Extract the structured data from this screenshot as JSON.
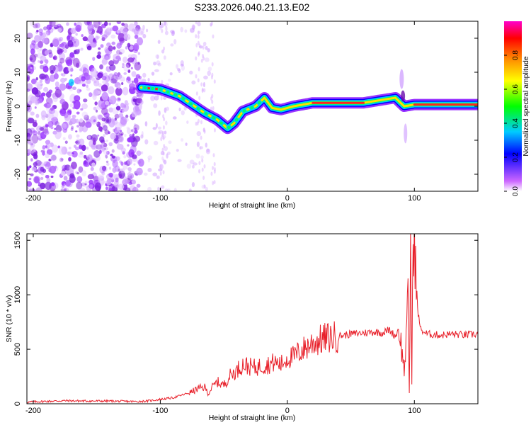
{
  "title": "S233.2026.040.21.13.E02",
  "chart_data": [
    {
      "type": "heatmap",
      "name": "spectrogram",
      "xlabel": "Height of straight line (km)",
      "ylabel": "Frequency (Hz)",
      "xlim": [
        -205,
        150
      ],
      "ylim": [
        -25,
        25
      ],
      "xticks": [
        -200,
        -100,
        0,
        100
      ],
      "yticks": [
        -20,
        -10,
        0,
        10,
        20
      ],
      "colorbar": {
        "label": "Normalized spectral amplitude",
        "range": [
          0,
          1
        ],
        "ticks": [
          0.0,
          0.2,
          0.4,
          0.6,
          0.8
        ],
        "colors": [
          "#ffffff",
          "#cc66ff",
          "#0000ff",
          "#00ccff",
          "#00ff00",
          "#ffff00",
          "#ff8800",
          "#ff0000",
          "#ff00cc"
        ]
      },
      "ridge": [
        {
          "x": -115,
          "y": 5.5
        },
        {
          "x": -100,
          "y": 5
        },
        {
          "x": -85,
          "y": 3
        },
        {
          "x": -75,
          "y": 0.5
        },
        {
          "x": -65,
          "y": -2
        },
        {
          "x": -55,
          "y": -4
        },
        {
          "x": -47,
          "y": -6.5
        },
        {
          "x": -42,
          "y": -5
        },
        {
          "x": -35,
          "y": -1.5
        },
        {
          "x": -25,
          "y": 0
        },
        {
          "x": -18,
          "y": 2.5
        },
        {
          "x": -12,
          "y": -0.5
        },
        {
          "x": -5,
          "y": -1
        },
        {
          "x": 5,
          "y": 0
        },
        {
          "x": 20,
          "y": 1
        },
        {
          "x": 60,
          "y": 1
        },
        {
          "x": 85,
          "y": 2.5
        },
        {
          "x": 92,
          "y": 0
        },
        {
          "x": 100,
          "y": 0.5
        },
        {
          "x": 150,
          "y": 0.5
        }
      ]
    },
    {
      "type": "line",
      "name": "snr",
      "xlabel": "Height of straight line (km)",
      "ylabel": "SNR (10 * v/v)",
      "xlim": [
        -205,
        150
      ],
      "ylim": [
        0,
        1560
      ],
      "xticks": [
        -200,
        -100,
        0,
        100
      ],
      "yticks": [
        0,
        500,
        1000,
        1500
      ],
      "color": "#e8202a",
      "x": [
        -205,
        -190,
        -175,
        -160,
        -140,
        -120,
        -110,
        -100,
        -90,
        -80,
        -75,
        -70,
        -65,
        -62,
        -60,
        -55,
        -50,
        -45,
        -40,
        -38,
        -35,
        -30,
        -25,
        -20,
        -15,
        -10,
        -5,
        0,
        5,
        10,
        15,
        20,
        30,
        40,
        50,
        60,
        70,
        75,
        80,
        85,
        88,
        90,
        92,
        94,
        95,
        96,
        97,
        98,
        99,
        100,
        102,
        105,
        110,
        120,
        130,
        140,
        150
      ],
      "y": [
        15,
        22,
        28,
        25,
        25,
        20,
        25,
        40,
        55,
        90,
        110,
        140,
        150,
        90,
        140,
        200,
        170,
        260,
        300,
        330,
        360,
        340,
        330,
        350,
        360,
        380,
        360,
        420,
        430,
        480,
        520,
        560,
        600,
        620,
        640,
        650,
        660,
        650,
        680,
        620,
        700,
        500,
        300,
        650,
        1000,
        100,
        1450,
        200,
        1500,
        1560,
        900,
        680,
        640,
        630,
        640,
        630,
        640
      ]
    }
  ]
}
